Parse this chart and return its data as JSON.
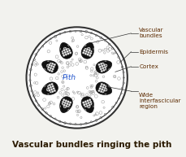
{
  "title": "Vascular bundles ringing the pith",
  "title_fontsize": 7.5,
  "title_color": "#2b1a00",
  "pith_label": "Pith",
  "pith_label_color": "#2255cc",
  "pith_label_fontsize": 6.5,
  "labels": [
    "Vascular\nbundles",
    "Epidermis",
    "Cortex",
    "Wide\ninterfascicular\nregion"
  ],
  "label_color": "#5c2a00",
  "label_fontsize": 5.2,
  "line_color": "#333333",
  "outer_r": 0.82,
  "inner_r": 0.76,
  "num_vb": 8,
  "vb_ring_r": 0.5,
  "vb_size_a": 0.115,
  "vb_size_b": 0.135,
  "background_color": "#f2f2ee",
  "stem_fill": "#ffffff"
}
